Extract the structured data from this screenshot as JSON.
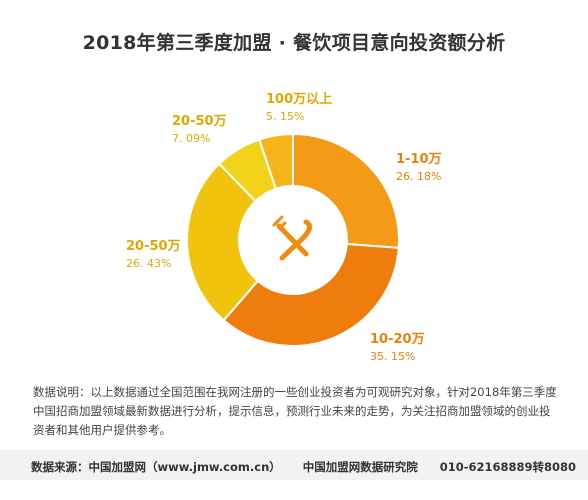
{
  "chart_data": {
    "type": "pie",
    "title": "2018年第三季度加盟 · 餐饮项目意向投资额分析",
    "slices": [
      {
        "label": "1-10万",
        "value": 26.18,
        "value_text": "26. 18%",
        "color": "#f59a16",
        "label_color": "#e8820c"
      },
      {
        "label": "10-20万",
        "value": 35.15,
        "value_text": "35. 15%",
        "color": "#ee7d0e",
        "label_color": "#e8820c"
      },
      {
        "label": "20-50万",
        "value": 26.43,
        "value_text": "26. 43%",
        "color": "#f0c40c",
        "label_color": "#e0a800"
      },
      {
        "label": "20-50万",
        "value": 7.09,
        "value_text": "7. 09%",
        "color": "#f2d21a",
        "label_color": "#e0a800"
      },
      {
        "label": "100万以上",
        "value": 5.15,
        "value_text": "5. 15%",
        "color": "#f7b51c",
        "label_color": "#e0a800"
      }
    ],
    "center_icon": "fork-knife-icon"
  },
  "description": "数据说明：以上数据通过全国范围在我网注册的一些创业投资者为可观研究对象，针对2018年第三季度中国招商加盟领域最新数据进行分析，提示信息，预测行业未来的走势，为关注招商加盟领域的创业投资者和其他用户提供参考。",
  "source": {
    "origin": "数据来源：中国加盟网（www.jmw.com.cn）",
    "institute": "中国加盟网数据研究院",
    "phone": "010-62168889转8080"
  }
}
